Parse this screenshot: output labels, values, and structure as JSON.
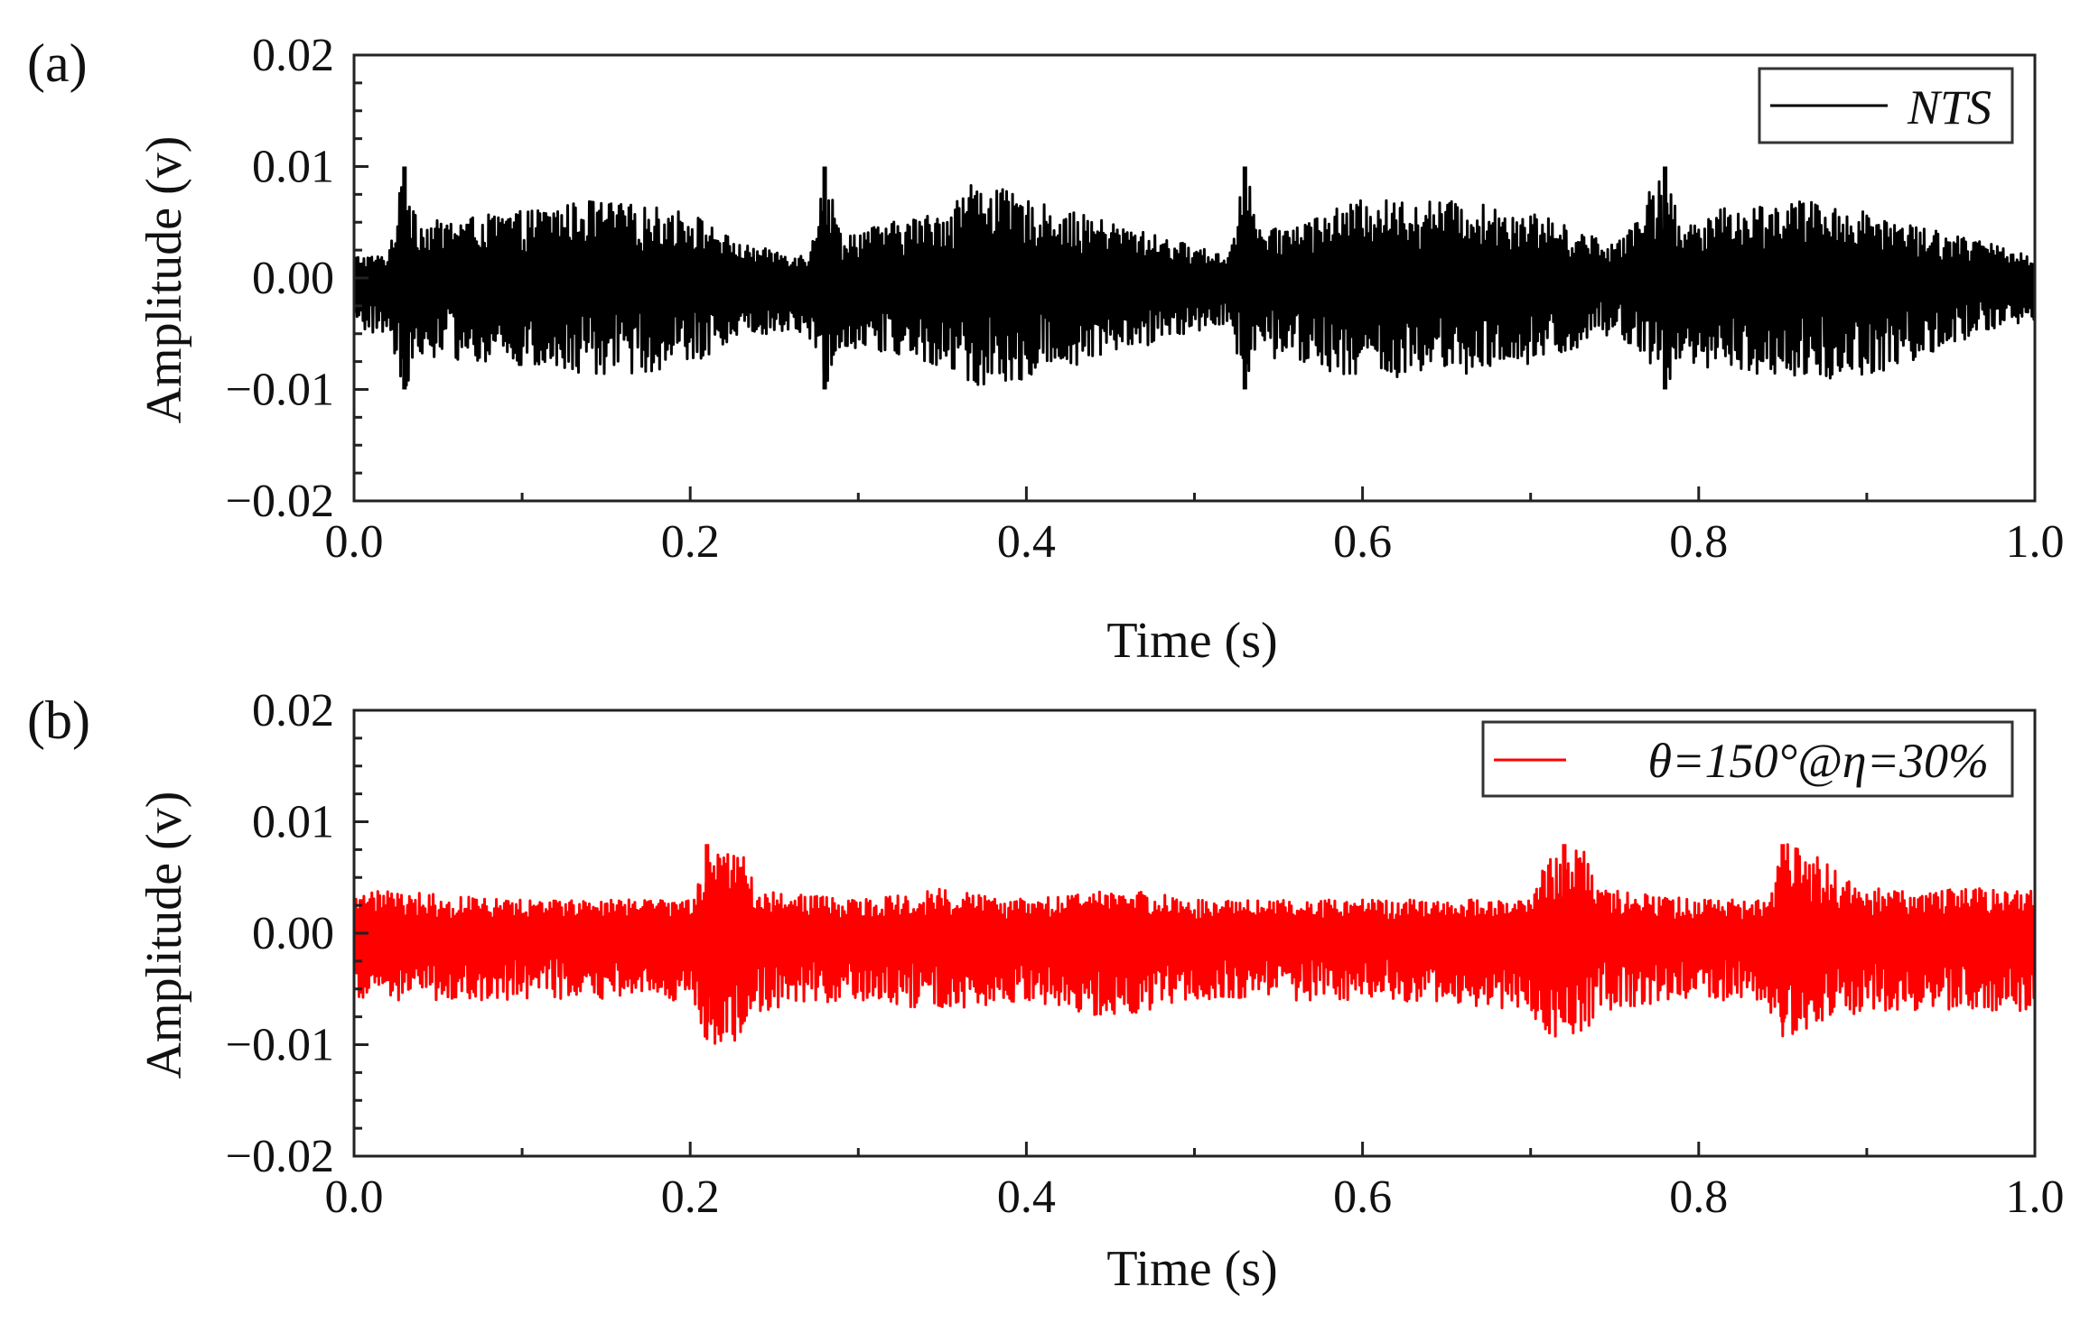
{
  "chart_data": [
    {
      "panel_label": "(a)",
      "type": "line",
      "xlabel": "Time (s)",
      "ylabel": "Amplitude (v)",
      "xlim": [
        0.0,
        1.0
      ],
      "ylim": [
        -0.02,
        0.02
      ],
      "x_ticks": [
        "0.0",
        "0.2",
        "0.4",
        "0.6",
        "0.8",
        "1.0"
      ],
      "y_ticks": [
        "0.02",
        "0.01",
        "0.00",
        "−0.01",
        "−0.02"
      ],
      "grid": false,
      "legend_position": "top-right",
      "series": [
        {
          "name": "NTS",
          "color": "#000000",
          "envelope": {
            "x": [
              0.0,
              0.02,
              0.03,
              0.04,
              0.1,
              0.14,
              0.2,
              0.23,
              0.27,
              0.28,
              0.29,
              0.35,
              0.37,
              0.4,
              0.45,
              0.52,
              0.53,
              0.54,
              0.6,
              0.65,
              0.7,
              0.75,
              0.78,
              0.79,
              0.8,
              0.86,
              0.9,
              0.95,
              1.0
            ],
            "upper": [
              0.002,
              0.002,
              0.01,
              0.005,
              0.006,
              0.007,
              0.006,
              0.003,
              0.002,
              0.01,
              0.004,
              0.006,
              0.009,
              0.007,
              0.005,
              0.002,
              0.01,
              0.004,
              0.007,
              0.007,
              0.006,
              0.003,
              0.01,
              0.004,
              0.006,
              0.007,
              0.006,
              0.004,
              0.002
            ],
            "lower": [
              -0.005,
              -0.005,
              -0.01,
              -0.007,
              -0.008,
              -0.009,
              -0.008,
              -0.005,
              -0.005,
              -0.01,
              -0.006,
              -0.008,
              -0.01,
              -0.009,
              -0.007,
              -0.004,
              -0.01,
              -0.007,
              -0.009,
              -0.009,
              -0.008,
              -0.005,
              -0.01,
              -0.007,
              -0.008,
              -0.009,
              -0.009,
              -0.006,
              -0.004
            ]
          },
          "peaks": [
            {
              "x": 0.03,
              "value": 0.01
            },
            {
              "x": 0.28,
              "value": 0.01
            },
            {
              "x": 0.53,
              "value": 0.01
            },
            {
              "x": 0.78,
              "value": 0.01
            }
          ]
        }
      ]
    },
    {
      "panel_label": "(b)",
      "type": "line",
      "xlabel": "Time (s)",
      "ylabel": "Amplitude (v)",
      "xlim": [
        0.0,
        1.0
      ],
      "ylim": [
        -0.02,
        0.02
      ],
      "x_ticks": [
        "0.0",
        "0.2",
        "0.4",
        "0.6",
        "0.8",
        "1.0"
      ],
      "y_ticks": [
        "0.02",
        "0.01",
        "0.00",
        "−0.01",
        "−0.02"
      ],
      "grid": false,
      "legend_position": "top-right",
      "series": [
        {
          "name": "θ=150°@η=30%",
          "color": "#ff0000",
          "envelope": {
            "x": [
              0.0,
              0.1,
              0.2,
              0.21,
              0.22,
              0.23,
              0.24,
              0.3,
              0.35,
              0.4,
              0.46,
              0.5,
              0.6,
              0.7,
              0.71,
              0.72,
              0.73,
              0.74,
              0.8,
              0.84,
              0.85,
              0.86,
              0.87,
              0.9,
              1.0
            ],
            "upper": [
              0.004,
              0.003,
              0.003,
              0.006,
              0.008,
              0.008,
              0.004,
              0.003,
              0.004,
              0.003,
              0.004,
              0.003,
              0.003,
              0.003,
              0.007,
              0.007,
              0.008,
              0.004,
              0.003,
              0.003,
              0.008,
              0.008,
              0.007,
              0.004,
              0.004
            ],
            "lower": [
              -0.006,
              -0.006,
              -0.006,
              -0.01,
              -0.01,
              -0.01,
              -0.007,
              -0.006,
              -0.007,
              -0.006,
              -0.008,
              -0.006,
              -0.006,
              -0.007,
              -0.01,
              -0.01,
              -0.01,
              -0.007,
              -0.006,
              -0.006,
              -0.01,
              -0.009,
              -0.008,
              -0.007,
              -0.007
            ]
          },
          "peaks": [
            {
              "x": 0.21,
              "value": 0.008
            },
            {
              "x": 0.72,
              "value": 0.008
            },
            {
              "x": 0.85,
              "value": 0.008
            }
          ]
        }
      ]
    }
  ]
}
